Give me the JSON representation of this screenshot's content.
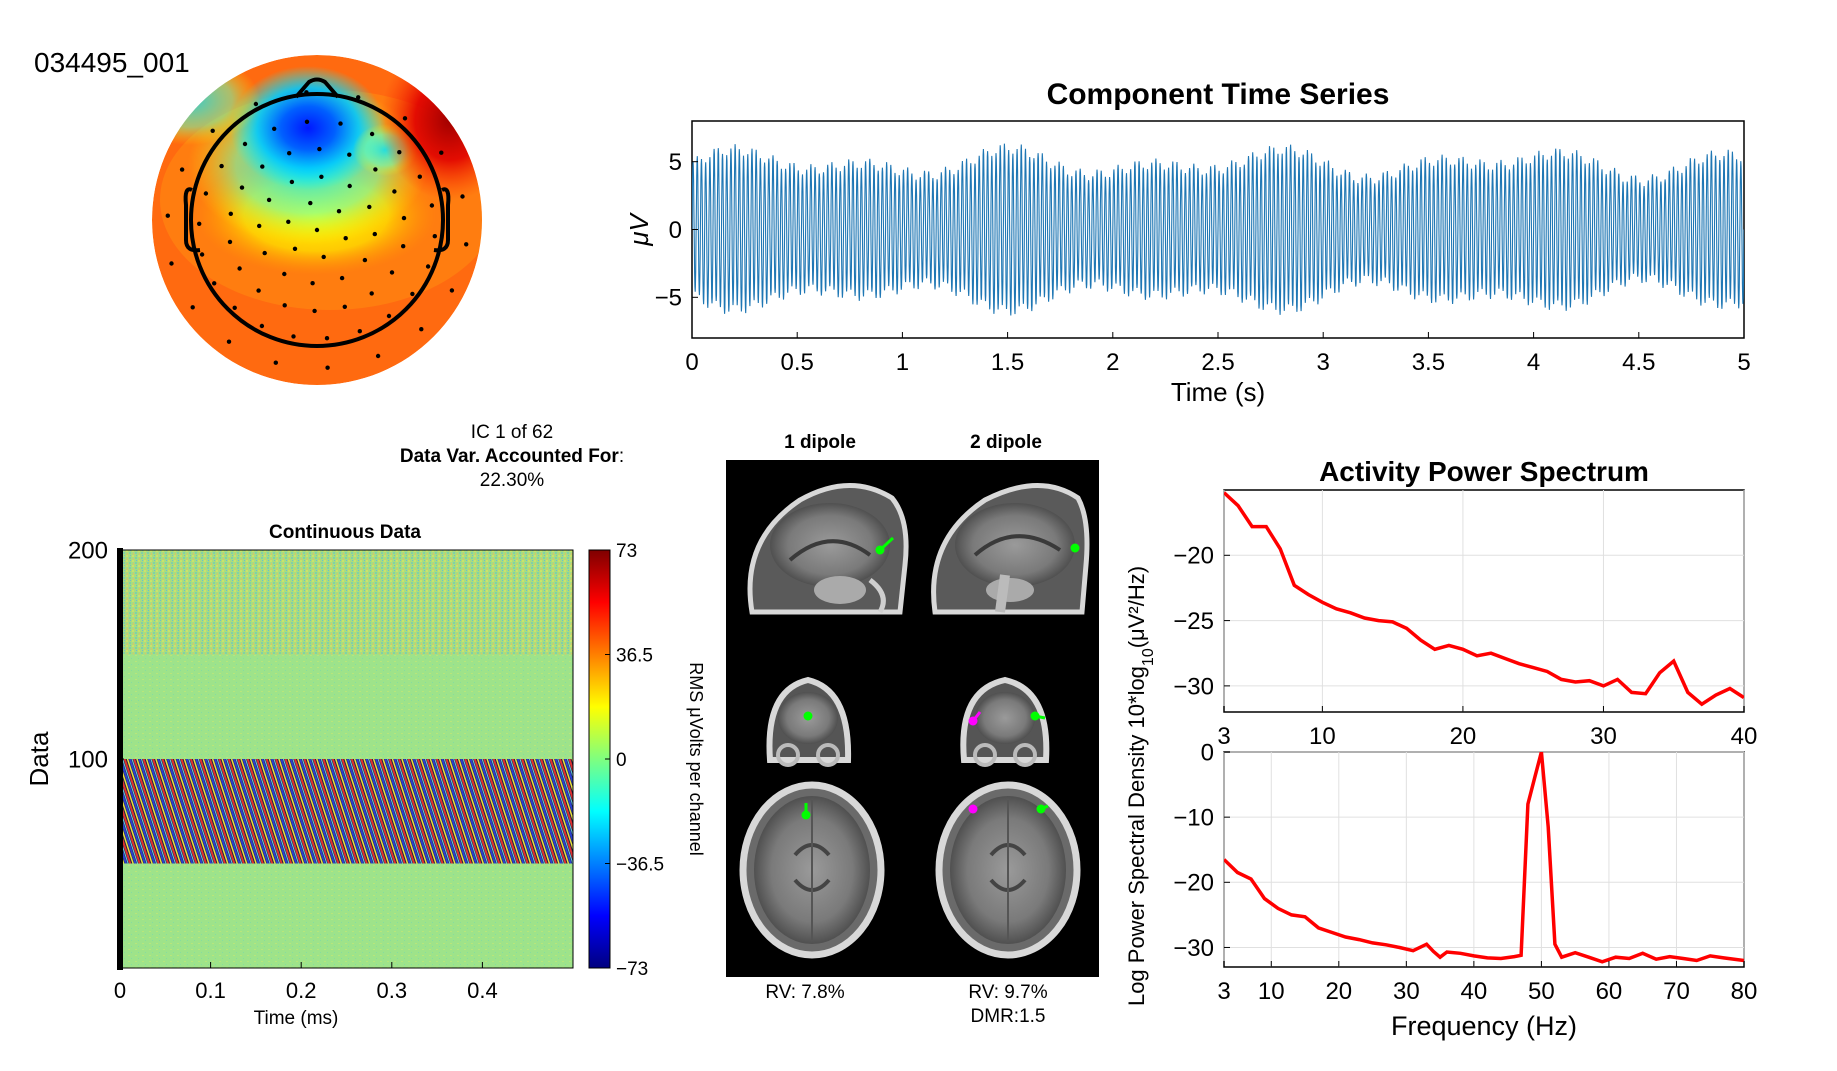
{
  "figure_id": "034495_001",
  "ic_info": {
    "line1": "IC 1 of 62",
    "line2_bold": "Data Var. Accounted For",
    "line2_tail": ":",
    "line3": "22.30%"
  },
  "colors": {
    "trace": "#1f77b4",
    "spectrum": "#ff0000",
    "dipole_green": "#00ff00",
    "dipole_magenta": "#ff00ff",
    "grid": "#e0e0e0"
  },
  "dipoles": {
    "col1_title": "1 dipole",
    "col2_title": "2 dipole",
    "col1_rv": "RV: 7.8%",
    "col2_rv": "RV: 9.7%",
    "col2_dmr": "DMR:1.5",
    "views": [
      "sagittal",
      "coronal",
      "axial"
    ]
  },
  "chart_data": [
    {
      "id": "topomap",
      "type": "heatmap",
      "description_free": true,
      "colormap": "jet",
      "electrodes_shown": true
    },
    {
      "id": "timeseries",
      "type": "line",
      "title": "Component Time Series",
      "xlabel": "Time (s)",
      "ylabel": "μV",
      "xlim": [
        0,
        5
      ],
      "ylim": [
        -8,
        8
      ],
      "xticks": [
        "0",
        "0.5",
        "1",
        "1.5",
        "2",
        "2.5",
        "3",
        "3.5",
        "4",
        "4.5",
        "5"
      ],
      "xtick_values": [
        0,
        0.5,
        1,
        1.5,
        2,
        2.5,
        3,
        3.5,
        4,
        4.5,
        5
      ],
      "yticks": [
        "5",
        "0",
        "−5"
      ],
      "ytick_values": [
        5,
        0,
        -5
      ],
      "dominant_frequency_hz": 50,
      "amplitude_uv": 6
    },
    {
      "id": "continuous",
      "type": "heatmap",
      "title": "Continuous Data",
      "xlabel": "Time (ms)",
      "ylabel": "Data",
      "xlim": [
        0,
        0.5
      ],
      "ylim": [
        0,
        200
      ],
      "xticks": [
        "0",
        "0.1",
        "0.2",
        "0.3",
        "0.4"
      ],
      "xtick_values": [
        0,
        0.1,
        0.2,
        0.3,
        0.4
      ],
      "yticks": [
        "200",
        "100"
      ],
      "ytick_values": [
        200,
        100
      ],
      "colorbar_label": "RMS μVolts per channel",
      "colorbar_ticks": [
        "73",
        "36.5",
        "0",
        "−36.5",
        "−73"
      ],
      "colorbar_values": [
        73,
        36.5,
        0,
        -36.5,
        -73
      ],
      "clim": [
        -73,
        73
      ],
      "bands": [
        {
          "from": 150,
          "to": 200,
          "pattern": "noisy"
        },
        {
          "from": 100,
          "to": 150,
          "pattern": "uniform"
        },
        {
          "from": 50,
          "to": 100,
          "pattern": "striped"
        },
        {
          "from": 0,
          "to": 50,
          "pattern": "uniform"
        }
      ]
    },
    {
      "id": "spectrum_top",
      "type": "line",
      "title": "Activity Power Spectrum",
      "xlim": [
        3,
        40
      ],
      "ylim": [
        -32,
        -15
      ],
      "xticks": [
        "3",
        "10",
        "20",
        "30",
        "40"
      ],
      "xtick_values": [
        3,
        10,
        20,
        30,
        40
      ],
      "yticks": [
        "−20",
        "−25",
        "−30"
      ],
      "ytick_values": [
        -20,
        -25,
        -30
      ],
      "x": [
        3,
        4,
        5,
        6,
        7,
        8,
        9,
        10,
        11,
        12,
        13,
        14,
        15,
        16,
        17,
        18,
        19,
        20,
        21,
        22,
        23,
        24,
        25,
        26,
        27,
        28,
        29,
        30,
        31,
        32,
        33,
        34,
        35,
        36,
        37,
        38,
        39,
        40
      ],
      "y": [
        -15.2,
        -16.2,
        -17.8,
        -17.8,
        -19.5,
        -22.3,
        -23.0,
        -23.6,
        -24.1,
        -24.4,
        -24.8,
        -25.0,
        -25.1,
        -25.6,
        -26.5,
        -27.2,
        -26.9,
        -27.2,
        -27.7,
        -27.5,
        -27.9,
        -28.3,
        -28.6,
        -28.9,
        -29.5,
        -29.7,
        -29.6,
        -30.0,
        -29.5,
        -30.5,
        -30.6,
        -29.0,
        -28.1,
        -30.5,
        -31.4,
        -30.7,
        -30.2,
        -30.9
      ]
    },
    {
      "id": "spectrum_bottom",
      "type": "line",
      "xlabel": "Frequency (Hz)",
      "xlim": [
        3,
        80
      ],
      "ylim": [
        -33,
        0
      ],
      "xticks": [
        "3",
        "10",
        "20",
        "30",
        "40",
        "50",
        "60",
        "70",
        "80"
      ],
      "xtick_values": [
        3,
        10,
        20,
        30,
        40,
        50,
        60,
        70,
        80
      ],
      "yticks": [
        "0",
        "−10",
        "−20",
        "−30"
      ],
      "ytick_values": [
        0,
        -10,
        -20,
        -30
      ],
      "x": [
        3,
        5,
        7,
        9,
        11,
        13,
        15,
        17,
        19,
        21,
        23,
        25,
        27,
        29,
        31,
        33,
        34,
        35,
        36,
        38,
        40,
        42,
        44,
        46,
        47,
        48,
        49,
        50,
        51,
        52,
        53,
        55,
        57,
        59,
        61,
        63,
        65,
        67,
        69,
        71,
        73,
        75,
        77,
        80
      ],
      "y": [
        -16.5,
        -18.5,
        -19.5,
        -22.5,
        -24.0,
        -25.0,
        -25.3,
        -27.0,
        -27.7,
        -28.4,
        -28.8,
        -29.3,
        -29.6,
        -30.0,
        -30.5,
        -29.5,
        -30.6,
        -31.5,
        -30.7,
        -30.9,
        -31.3,
        -31.6,
        -31.7,
        -31.4,
        -31.2,
        -8.0,
        -4.0,
        0.0,
        -11.5,
        -29.5,
        -31.5,
        -30.8,
        -31.5,
        -32.2,
        -31.5,
        -31.7,
        -30.9,
        -31.8,
        -31.4,
        -31.7,
        -32.0,
        -31.3,
        -31.6,
        -32.0
      ]
    }
  ],
  "shared_ylabel_prefix": "Log Power Spectral Density 10*log",
  "shared_ylabel_sub": "10",
  "shared_ylabel_suffix": "(μV²/Hz)"
}
